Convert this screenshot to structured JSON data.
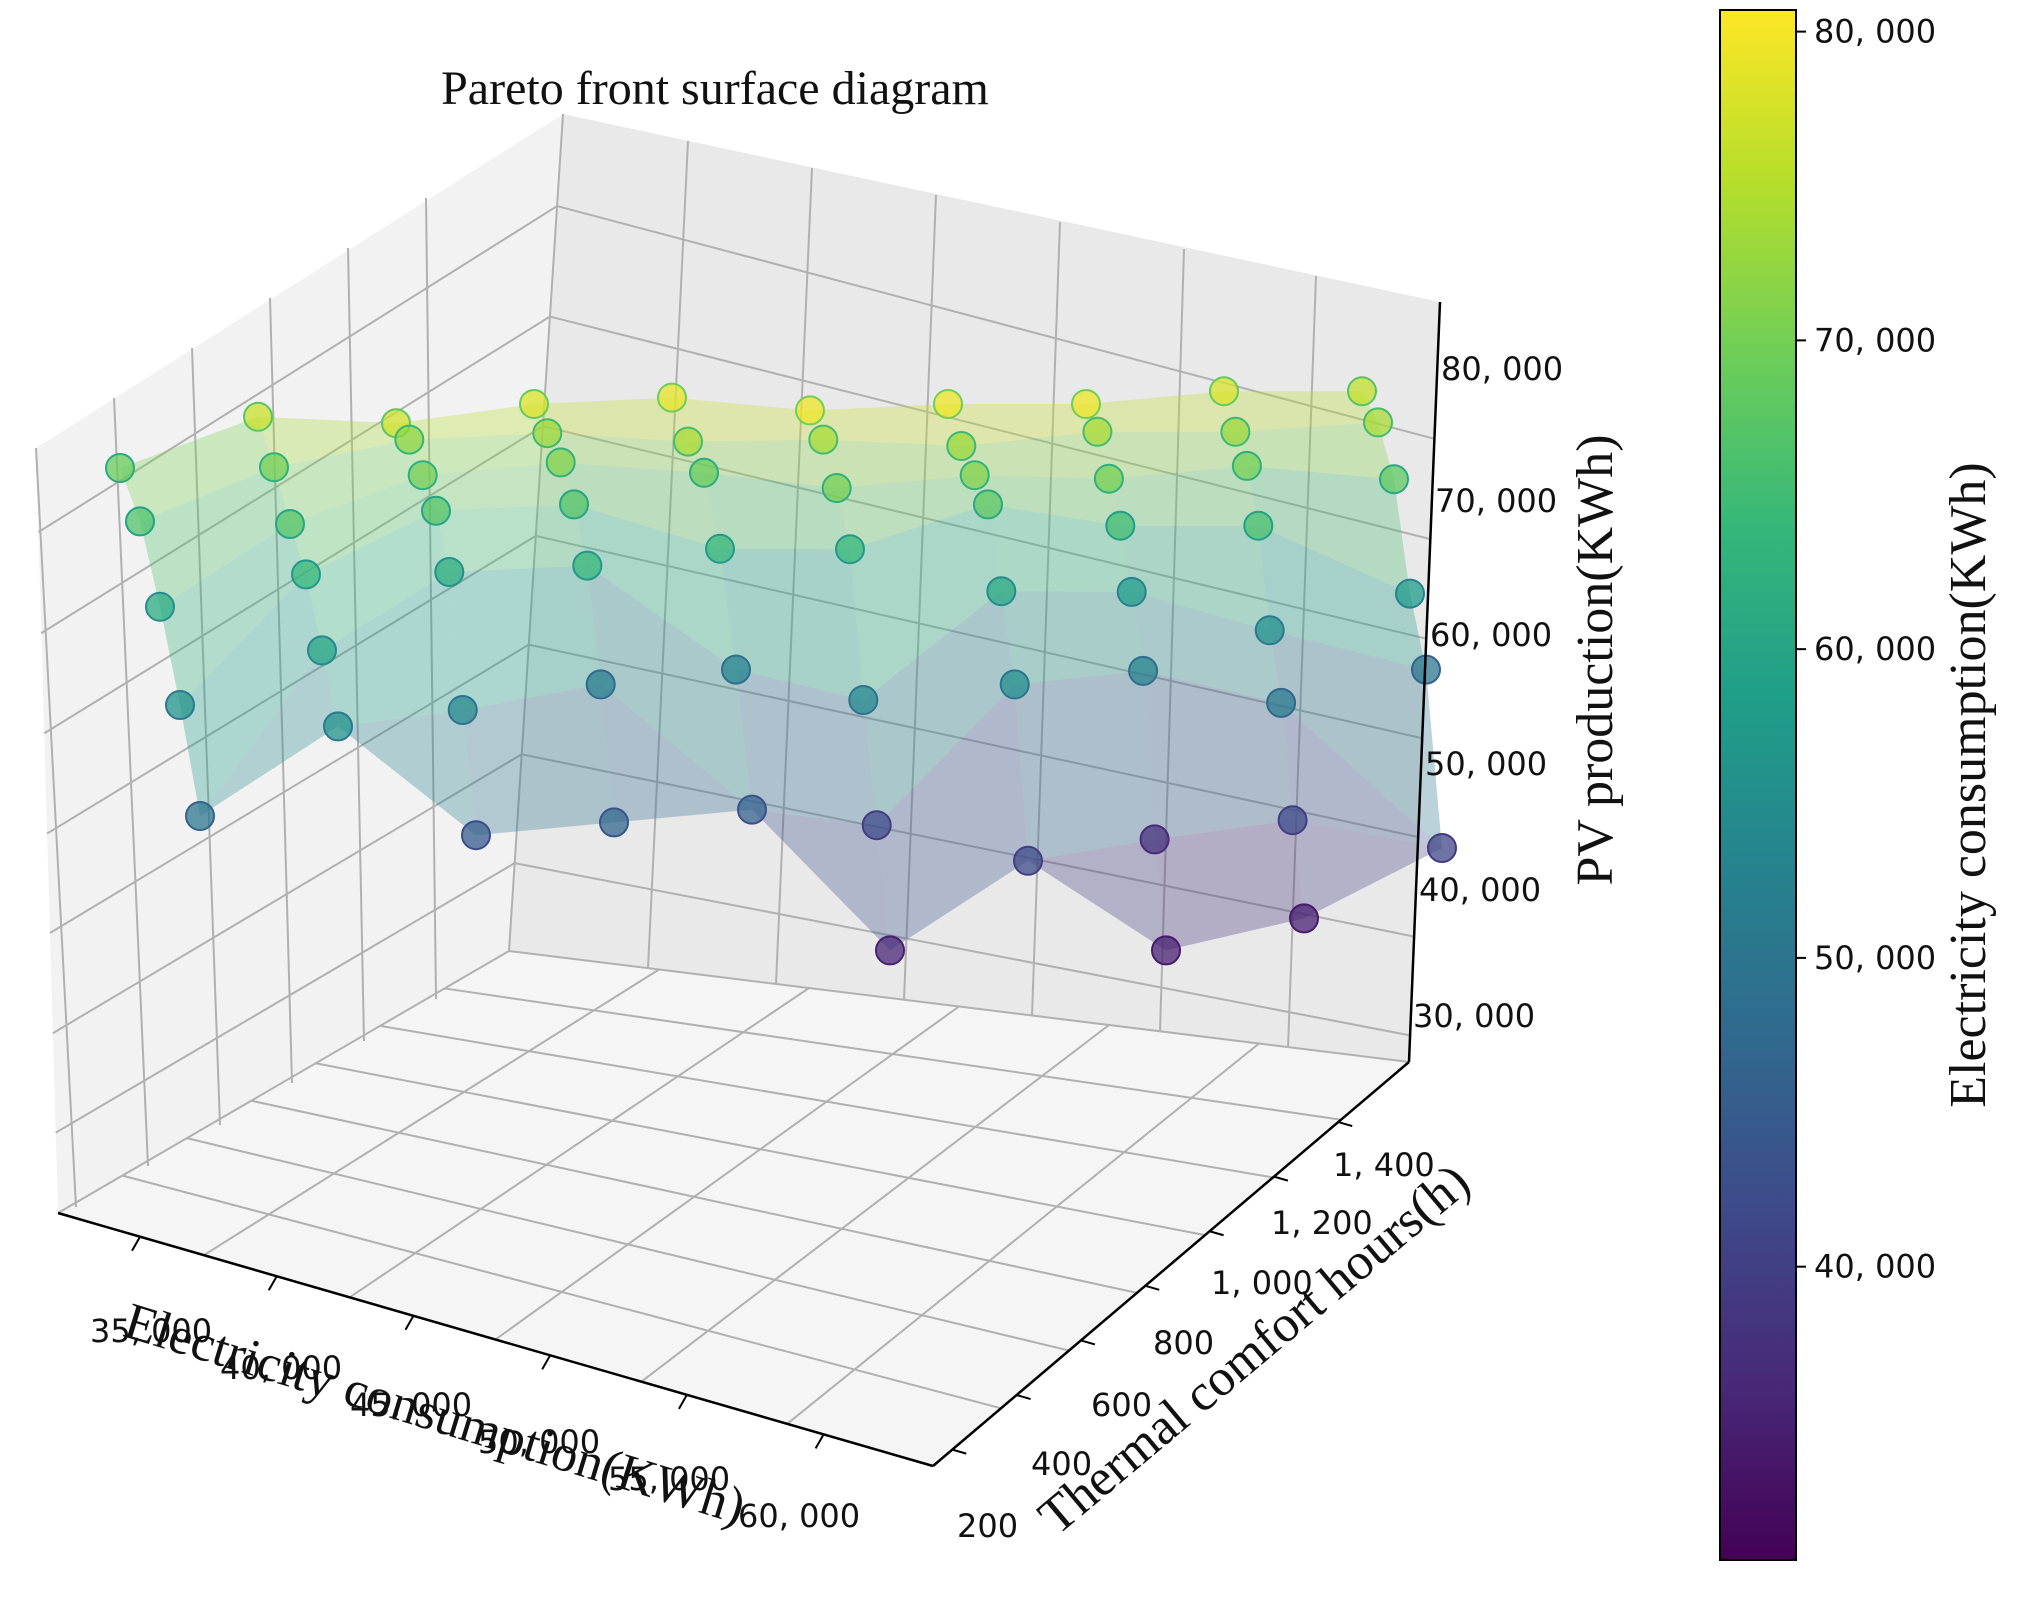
{
  "chart_data": {
    "type": "scatter",
    "subtype": "3d-scatter-with-surface",
    "title": "Pareto front surface diagram",
    "xlabel": "Electricity consumption(KWh)",
    "ylabel": "Thermal comfort hours(h)",
    "zlabel": "PV production(KWh)",
    "colorbar_label": "Electricity consumption(KWh)",
    "colormap": "viridis",
    "x_ticks": [
      "35, 000",
      "40, 000",
      "45, 000",
      "50, 000",
      "55, 000",
      "60, 000"
    ],
    "y_ticks": [
      "200",
      "400",
      "600",
      "800",
      "1, 000",
      "1, 200",
      "1, 400"
    ],
    "z_ticks": [
      "30, 000",
      "40, 000",
      "50, 000",
      "60, 000",
      "70, 000",
      "80, 000"
    ],
    "colorbar_ticks": [
      "40, 000",
      "50, 000",
      "60, 000",
      "70, 000",
      "80, 000"
    ],
    "colorbar_range": [
      30500,
      80700
    ],
    "z_range": [
      27000,
      84000
    ],
    "grid": true,
    "colors": {
      "viridis": [
        "#440154",
        "#482878",
        "#3e4989",
        "#31688e",
        "#26828e",
        "#1f9e89",
        "#35b779",
        "#6ece58",
        "#b5de2b",
        "#fde725"
      ],
      "axis_line": "#000000",
      "grid_line": "#b0b0b0",
      "pane": "#f2f2f2"
    },
    "points": [
      {
        "c": 68800,
        "z": 67000
      },
      {
        "c": 66500,
        "z": 64000
      },
      {
        "c": 61500,
        "z": 58500
      },
      {
        "c": 56000,
        "z": 52000
      },
      {
        "c": 50000,
        "z": 44500
      },
      {
        "c": 76500,
        "z": 71000
      },
      {
        "c": 70000,
        "z": 68000
      },
      {
        "c": 67000,
        "z": 64500
      },
      {
        "c": 64000,
        "z": 61500
      },
      {
        "c": 60000,
        "z": 56500
      },
      {
        "c": 56000,
        "z": 51500
      },
      {
        "c": 77000,
        "z": 70500
      },
      {
        "c": 72000,
        "z": 70000
      },
      {
        "c": 70000,
        "z": 68000
      },
      {
        "c": 67000,
        "z": 66000
      },
      {
        "c": 62000,
        "z": 62000
      },
      {
        "c": 54000,
        "z": 52000
      },
      {
        "c": 45000,
        "z": 43000
      },
      {
        "c": 78000,
        "z": 72000
      },
      {
        "c": 73000,
        "z": 70500
      },
      {
        "c": 71000,
        "z": 69000
      },
      {
        "c": 67000,
        "z": 66500
      },
      {
        "c": 64000,
        "z": 62500
      },
      {
        "c": 52000,
        "z": 54000
      },
      {
        "c": 47000,
        "z": 44000
      },
      {
        "c": 79000,
        "z": 72500
      },
      {
        "c": 74000,
        "z": 70000
      },
      {
        "c": 69000,
        "z": 68500
      },
      {
        "c": 64000,
        "z": 63500
      },
      {
        "c": 53000,
        "z": 55000
      },
      {
        "c": 46000,
        "z": 45000
      },
      {
        "c": 79500,
        "z": 71500
      },
      {
        "c": 74000,
        "z": 70000
      },
      {
        "c": 70000,
        "z": 67000
      },
      {
        "c": 64000,
        "z": 63000
      },
      {
        "c": 54000,
        "z": 52000
      },
      {
        "c": 42000,
        "z": 43000
      },
      {
        "c": 36000,
        "z": 34000
      },
      {
        "c": 79500,
        "z": 72000
      },
      {
        "c": 73000,
        "z": 69500
      },
      {
        "c": 71000,
        "z": 68000
      },
      {
        "c": 68000,
        "z": 66500
      },
      {
        "c": 61000,
        "z": 60500
      },
      {
        "c": 55000,
        "z": 54000
      },
      {
        "c": 42000,
        "z": 41000
      },
      {
        "c": 79500,
        "z": 72000
      },
      {
        "c": 74000,
        "z": 70500
      },
      {
        "c": 70000,
        "z": 67500
      },
      {
        "c": 65000,
        "z": 64500
      },
      {
        "c": 58000,
        "z": 60000
      },
      {
        "c": 53000,
        "z": 54500
      },
      {
        "c": 38000,
        "z": 42000
      },
      {
        "c": 35000,
        "z": 34000
      },
      {
        "c": 78000,
        "z": 73000
      },
      {
        "c": 73000,
        "z": 70500
      },
      {
        "c": 70000,
        "z": 68500
      },
      {
        "c": 66000,
        "z": 64500
      },
      {
        "c": 56000,
        "z": 57000
      },
      {
        "c": 51000,
        "z": 52000
      },
      {
        "c": 42000,
        "z": 43500
      },
      {
        "c": 35000,
        "z": 36500
      },
      {
        "c": 76000,
        "z": 73000
      },
      {
        "c": 74000,
        "z": 71500
      },
      {
        "c": 68000,
        "z": 68000
      },
      {
        "c": 58000,
        "z": 60000
      },
      {
        "c": 50000,
        "z": 55000
      },
      {
        "c": 41000,
        "z": 42000
      }
    ]
  }
}
